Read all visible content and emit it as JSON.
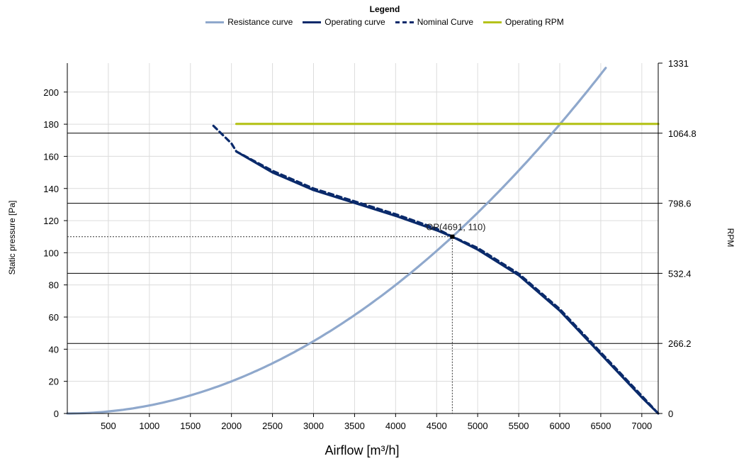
{
  "legend": {
    "title": "Legend",
    "items": [
      {
        "label": "Resistance curve",
        "color": "#8fa8cc",
        "style": "solid"
      },
      {
        "label": "Operating curve",
        "color": "#0a2a6b",
        "style": "solid"
      },
      {
        "label": "Nominal Curve",
        "color": "#0a2a6b",
        "style": "dashed"
      },
      {
        "label": "Operating RPM",
        "color": "#b5c21a",
        "style": "solid"
      }
    ]
  },
  "chart_data": {
    "type": "line",
    "xlabel": "Airflow [m³/h]",
    "ylabel": "Static pressure [Pa]",
    "y2label": "RPM",
    "xlim": [
      0,
      7200
    ],
    "ylim": [
      0,
      218
    ],
    "y2lim": [
      0,
      1331
    ],
    "x_ticks": [
      "500",
      "1000",
      "1500",
      "2000",
      "2500",
      "3000",
      "3500",
      "4000",
      "4500",
      "5000",
      "5500",
      "6000",
      "6500",
      "7000"
    ],
    "y_ticks": [
      "0",
      "20",
      "40",
      "60",
      "80",
      "100",
      "120",
      "140",
      "160",
      "180",
      "200"
    ],
    "y2_ticks": [
      "0",
      "266.2",
      "532.4",
      "798.6",
      "1064.8",
      "1331"
    ],
    "grid": true,
    "legend_position": "top-center",
    "series": [
      {
        "name": "Resistance curve",
        "color": "#8fa8cc",
        "style": "solid",
        "x": [
          0,
          500,
          1000,
          1500,
          2000,
          2500,
          3000,
          3500,
          4000,
          4500,
          4691,
          5000,
          5500,
          6000,
          6560
        ],
        "y": [
          0,
          1.25,
          5,
          11.3,
          20,
          31.3,
          45,
          61.3,
          80,
          101.3,
          110,
          125,
          151.3,
          180,
          215
        ]
      },
      {
        "name": "Operating curve",
        "color": "#0a2a6b",
        "style": "solid",
        "x": [
          2060,
          2500,
          3000,
          3500,
          4000,
          4500,
          4691,
          5000,
          5500,
          6000,
          6500,
          7000,
          7200
        ],
        "y": [
          163,
          150,
          139,
          131,
          123,
          114,
          110,
          102,
          86,
          64,
          37,
          10,
          0
        ]
      },
      {
        "name": "Nominal Curve",
        "color": "#0a2a6b",
        "style": "dashed",
        "x": [
          1780,
          2000,
          2060,
          2500,
          3000,
          3500,
          4000,
          4500,
          4691,
          5000,
          5500,
          6000,
          6500,
          7000,
          7200
        ],
        "y": [
          179,
          168,
          163,
          151,
          140,
          132,
          124,
          115,
          110,
          103,
          87,
          65,
          38,
          11,
          0
        ]
      },
      {
        "name": "Operating RPM",
        "color": "#b5c21a",
        "style": "solid",
        "axis": "right",
        "x": [
          2060,
          7200
        ],
        "y": [
          1100,
          1100
        ]
      }
    ],
    "operating_point": {
      "x": 4691,
      "y": 110,
      "label": "OP(4691, 110)"
    }
  }
}
